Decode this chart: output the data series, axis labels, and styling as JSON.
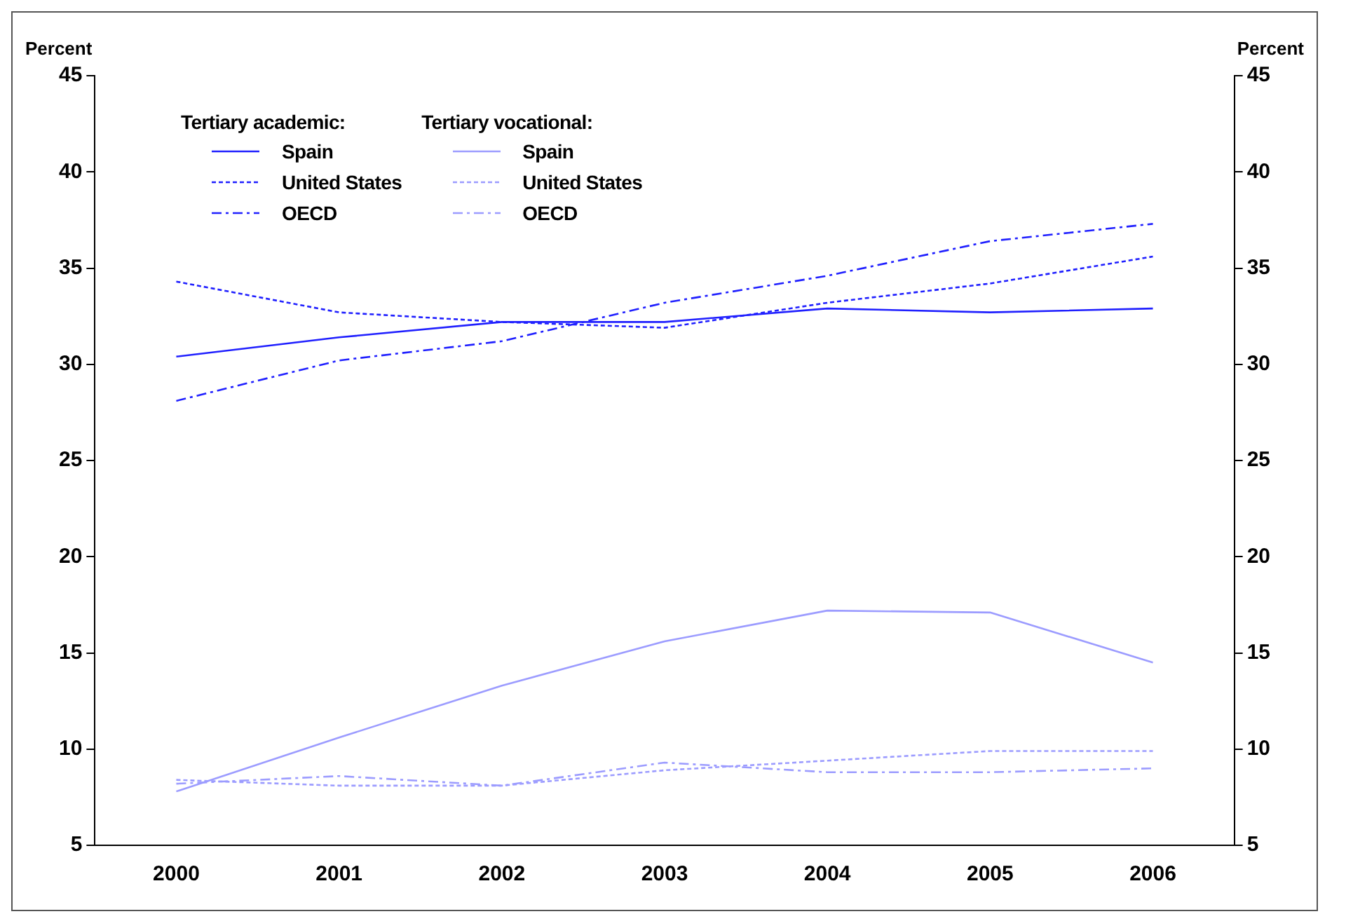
{
  "chart_data": {
    "type": "line",
    "categories": [
      "2000",
      "2001",
      "2002",
      "2003",
      "2004",
      "2005",
      "2006"
    ],
    "ylabel": "Percent",
    "y2label": "Percent",
    "ylim": [
      5,
      45
    ],
    "yticks": [
      5,
      10,
      15,
      20,
      25,
      30,
      35,
      40,
      45
    ],
    "y2lim": [
      5,
      45
    ],
    "y2ticks": [
      5,
      10,
      15,
      20,
      25,
      30,
      35,
      40,
      45
    ],
    "annotations": [
      "Tertiary academic:",
      "Tertiary vocational:"
    ],
    "legend": "top left",
    "grid": false,
    "marker": "none",
    "series": [
      {
        "name": "Spain",
        "color": "#2020ff",
        "line_style": "solid",
        "values": [
          30.4,
          31.4,
          32.2,
          32.2,
          32.9,
          32.7,
          32.9
        ]
      },
      {
        "name": "United States",
        "color": "#2020ff",
        "line_style": "dotted",
        "values": [
          34.3,
          32.7,
          32.2,
          31.9,
          33.2,
          34.2,
          35.6
        ]
      },
      {
        "name": "OECD",
        "color": "#2020ff",
        "line_style": "dashed",
        "values": [
          28.1,
          30.2,
          31.2,
          33.2,
          34.6,
          36.4,
          37.3
        ]
      },
      {
        "name": "Spain",
        "color": "#9c9cff",
        "line_style": "solid",
        "values": [
          7.8,
          10.6,
          13.3,
          15.6,
          17.2,
          17.1,
          14.5
        ]
      },
      {
        "name": "United States",
        "color": "#9c9cff",
        "line_style": "dotted",
        "values": [
          8.4,
          8.1,
          8.1,
          8.9,
          9.4,
          9.9,
          9.9
        ]
      },
      {
        "name": "OECD",
        "color": "#9c9cff",
        "line_style": "dashed",
        "values": [
          8.2,
          8.6,
          8.1,
          9.3,
          8.8,
          8.8,
          9.0
        ]
      }
    ]
  }
}
